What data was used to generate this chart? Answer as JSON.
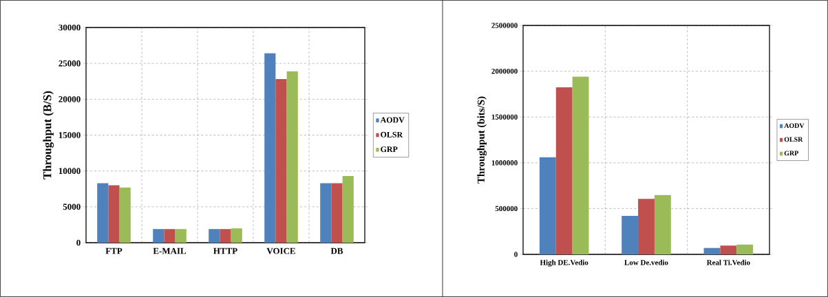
{
  "chart_data": [
    {
      "type": "bar",
      "ylabel": "Throughput (B/S)",
      "categories": [
        "FTP",
        "E-MAIL",
        "HTTP",
        "VOICE",
        "DB"
      ],
      "series": [
        {
          "name": "AODV",
          "color": "#4f81bd",
          "values": [
            8300,
            1900,
            1900,
            26400,
            8300
          ]
        },
        {
          "name": "OLSR",
          "color": "#c0504d",
          "values": [
            8000,
            1900,
            1900,
            22800,
            8300
          ]
        },
        {
          "name": "GRP",
          "color": "#9bbb59",
          "values": [
            7700,
            1900,
            2000,
            23900,
            9300
          ]
        }
      ],
      "ylim": [
        0,
        30000
      ],
      "yticks": [
        0,
        5000,
        10000,
        15000,
        20000,
        25000,
        30000
      ],
      "grid": true,
      "legend": "right"
    },
    {
      "type": "bar",
      "ylabel": "Throughput (bits/S)",
      "categories": [
        "High DE.Vedio",
        "Low De.vedio",
        "Real Ti.Vedio"
      ],
      "series": [
        {
          "name": "AODV",
          "color": "#4f81bd",
          "values": [
            1060000,
            420000,
            70000
          ]
        },
        {
          "name": "OLSR",
          "color": "#c0504d",
          "values": [
            1824000,
            606000,
            96000
          ]
        },
        {
          "name": "GRP",
          "color": "#9bbb59",
          "values": [
            1940000,
            647000,
            107000
          ]
        }
      ],
      "ylim": [
        0,
        2500000
      ],
      "yticks": [
        0,
        500000,
        1000000,
        1500000,
        2000000,
        2500000
      ],
      "grid": true,
      "legend": "right"
    }
  ]
}
